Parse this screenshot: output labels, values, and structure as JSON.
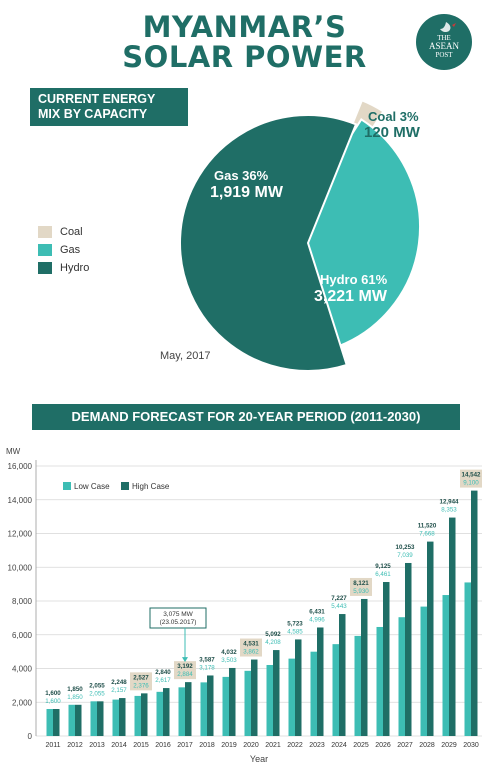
{
  "header": {
    "title_line1": "MYANMAR'S",
    "title_line2": "SOLAR POWER",
    "logo": {
      "line1": "THE",
      "line2": "ASEAN",
      "line3": "POST"
    }
  },
  "pie_section": {
    "banner_line1": "CURRENT ENERGY",
    "banner_line2": "MIX BY CAPACITY",
    "date": "May, 2017"
  },
  "bar_section": {
    "banner": "DEMAND FORECAST FOR 20-YEAR PERIOD (2011-2030)",
    "annotation_value": "3,075 MW",
    "annotation_date": "(23.05.2017)"
  },
  "colors": {
    "coal": "#e2d8c6",
    "gas": "#3dbdb4",
    "hydro": "#1f6e66",
    "low": "#3dbdb4",
    "high": "#1f6e66",
    "highlight": "#e2d8c6"
  },
  "chart_data": [
    {
      "type": "pie",
      "legend": [
        "Coal",
        "Gas",
        "Hydro"
      ],
      "slices": [
        {
          "name": "Coal",
          "pct_label": "Coal 3%",
          "value_label": "120 MW",
          "percent": 3,
          "mw": 120
        },
        {
          "name": "Gas",
          "pct_label": "Gas 36%",
          "value_label": "1,919 MW",
          "percent": 36,
          "mw": 1919
        },
        {
          "name": "Hydro",
          "pct_label": "Hydro 61%",
          "value_label": "3,221 MW",
          "percent": 61,
          "mw": 3221
        }
      ]
    },
    {
      "type": "bar",
      "ylabel": "MW",
      "xlabel": "Year",
      "ylim": [
        0,
        16000
      ],
      "yticks": [
        0,
        2000,
        4000,
        6000,
        8000,
        10000,
        12000,
        14000,
        16000
      ],
      "ytick_labels": [
        "0",
        "2,000",
        "4,000",
        "6,000",
        "8,000",
        "10,000",
        "12,000",
        "14,000",
        "16,000"
      ],
      "categories": [
        "2011",
        "2012",
        "2013",
        "2014",
        "2015",
        "2016",
        "2017",
        "2018",
        "2019",
        "2020",
        "2021",
        "2022",
        "2023",
        "2024",
        "2025",
        "2026",
        "2027",
        "2028",
        "2029",
        "2030"
      ],
      "series": [
        {
          "name": "Low Case",
          "values": [
            1600,
            1850,
            2055,
            2157,
            2376,
            2617,
            2884,
            3178,
            3503,
            3862,
            4208,
            4585,
            4996,
            5443,
            5930,
            6461,
            7039,
            7668,
            8353,
            9100
          ],
          "labels": [
            "1,600",
            "1,850",
            "2,055",
            "2,157",
            "2,376",
            "2,617",
            "2,884",
            "3,178",
            "3,503",
            "3,862",
            "4,208",
            "4,585",
            "4,996",
            "5,443",
            "5,930",
            "6,461",
            "7,039",
            "7,668",
            "8,353",
            "9,100"
          ]
        },
        {
          "name": "High Case",
          "values": [
            1600,
            1850,
            2055,
            2248,
            2527,
            2840,
            3192,
            3587,
            4032,
            4531,
            5092,
            5723,
            6431,
            7227,
            8121,
            9125,
            10253,
            11520,
            12944,
            14542
          ],
          "labels": [
            "1,600",
            "1,850",
            "2,055",
            "2,248",
            "2,527",
            "2,840",
            "3,192",
            "3,587",
            "4,032",
            "4,531",
            "5,092",
            "5,723",
            "6,431",
            "7,227",
            "8,121",
            "9,125",
            "10,253",
            "11,520",
            "12,944",
            "14,542"
          ]
        }
      ],
      "highlighted_years": [
        "2015",
        "2017",
        "2020",
        "2025",
        "2030"
      ],
      "grid": true,
      "legend_position": "top-left"
    }
  ]
}
